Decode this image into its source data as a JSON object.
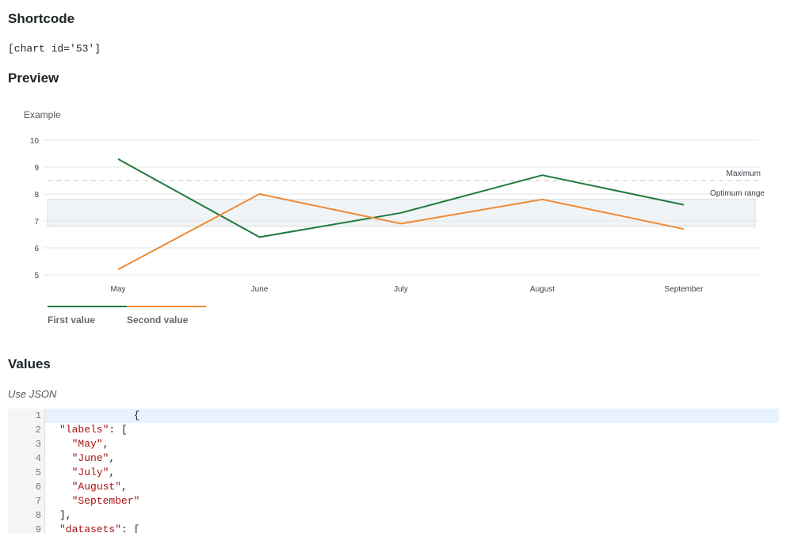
{
  "headings": {
    "shortcode": "Shortcode",
    "preview": "Preview",
    "values": "Values"
  },
  "shortcode_text": "[chart id='53']",
  "json_hint": "Use JSON",
  "chart_data": {
    "type": "line",
    "title": "Example",
    "categories": [
      "May",
      "June",
      "July",
      "August",
      "September"
    ],
    "series": [
      {
        "name": "First value",
        "values": [
          9.3,
          6.4,
          7.3,
          8.7,
          7.6
        ],
        "color": "#1e7a3c"
      },
      {
        "name": "Second value",
        "values": [
          5.2,
          8.0,
          6.9,
          7.8,
          6.7
        ],
        "color": "#ee8a35"
      }
    ],
    "ylim": [
      5,
      10
    ],
    "yticks": [
      5,
      6,
      7,
      8,
      9,
      10
    ],
    "annotations": [
      {
        "type": "line",
        "label": "Maximum",
        "value": 8.5
      },
      {
        "type": "box",
        "label": "Optimum range",
        "from": 6.8,
        "to": 7.8
      }
    ],
    "legend": "bottom-left",
    "grid": true
  },
  "editor": {
    "lines": [
      {
        "num": "1",
        "indent": "            ",
        "text": "{"
      },
      {
        "num": "2",
        "indent": "",
        "key": "\"labels\"",
        "text": ": ["
      },
      {
        "num": "3",
        "indent": "  ",
        "str": "\"May\"",
        "text": ","
      },
      {
        "num": "4",
        "indent": "  ",
        "str": "\"June\"",
        "text": ","
      },
      {
        "num": "5",
        "indent": "  ",
        "str": "\"July\"",
        "text": ","
      },
      {
        "num": "6",
        "indent": "  ",
        "str": "\"August\"",
        "text": ","
      },
      {
        "num": "7",
        "indent": "  ",
        "str": "\"September\"",
        "text": ""
      },
      {
        "num": "8",
        "indent": "",
        "text": "],"
      },
      {
        "num": "9",
        "indent": "",
        "key": "\"datasets\"",
        "text": ": ["
      }
    ]
  }
}
